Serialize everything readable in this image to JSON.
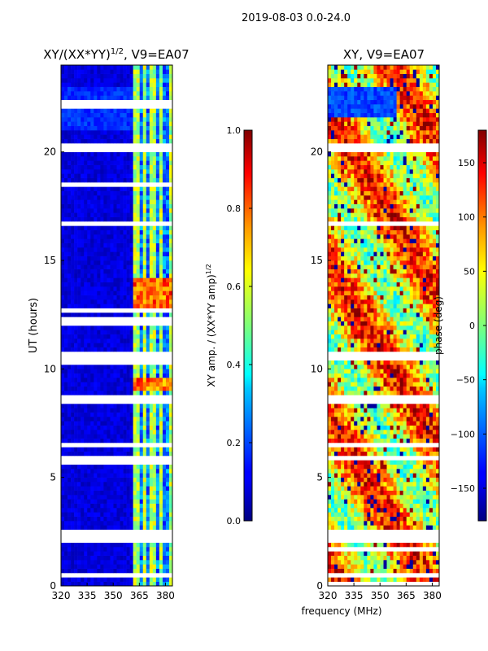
{
  "suptitle": "2019-08-03 0.0-24.0",
  "x_axis_label": "frequency (MHz)",
  "chart_data": [
    {
      "type": "heatmap",
      "title": "XY/(XX*YY)",
      "title_superscript": "1/2",
      "title_suffix": ", V9=EA07",
      "xlabel": "",
      "ylabel": "UT (hours)",
      "xlim": [
        320,
        384
      ],
      "ylim": [
        0,
        24
      ],
      "xticks": [
        320,
        335,
        350,
        365,
        380
      ],
      "yticks": [
        0,
        5,
        10,
        15,
        20
      ],
      "colorbar": {
        "label": "XY amp. / (XX*YY amp)",
        "label_superscript": "1/2",
        "range": [
          0.0,
          1.0
        ],
        "ticks": [
          "0.0",
          "0.2",
          "0.4",
          "0.6",
          "0.8",
          "1.0"
        ],
        "colormap": "jet"
      },
      "data_gaps_hours": [
        [
          0.4,
          0.6
        ],
        [
          2.0,
          2.55
        ],
        [
          5.75,
          5.95
        ],
        [
          6.45,
          6.65
        ],
        [
          8.5,
          8.7
        ],
        [
          10.5,
          10.8
        ],
        [
          16.65,
          16.85
        ],
        [
          20.1,
          20.4
        ]
      ],
      "data_summary": {
        "low_band_level": 0.05,
        "high_band_mhz": [
          362,
          384
        ],
        "high_band_level": 0.45,
        "bright_hours": [
          [
            9.0,
            9.6
          ],
          [
            12.8,
            14.2
          ]
        ],
        "bright_level": 0.9
      }
    },
    {
      "type": "heatmap",
      "title": "XY, V9=EA07",
      "xlabel": "",
      "ylabel": "",
      "xlim": [
        320,
        384
      ],
      "ylim": [
        0,
        24
      ],
      "xticks": [
        320,
        335,
        350,
        365,
        380
      ],
      "yticks": [
        0,
        5,
        10,
        15,
        20
      ],
      "colorbar": {
        "label": "phase (deg)",
        "range": [
          -180,
          180
        ],
        "ticks": [
          "150",
          "100",
          "50",
          "0",
          "−50",
          "−100",
          "−150"
        ],
        "colormap": "jet"
      },
      "data_gaps_hours": [
        [
          0.4,
          0.6
        ],
        [
          2.0,
          2.55
        ],
        [
          5.75,
          5.95
        ],
        [
          6.45,
          6.65
        ],
        [
          8.5,
          8.7
        ],
        [
          10.5,
          10.8
        ],
        [
          16.65,
          16.85
        ],
        [
          20.1,
          20.4
        ]
      ],
      "data_summary": {
        "phase_range_deg": [
          -180,
          180
        ],
        "dominant_phase_deg": 60,
        "note": "noisy phase with red/blue patches"
      }
    }
  ]
}
